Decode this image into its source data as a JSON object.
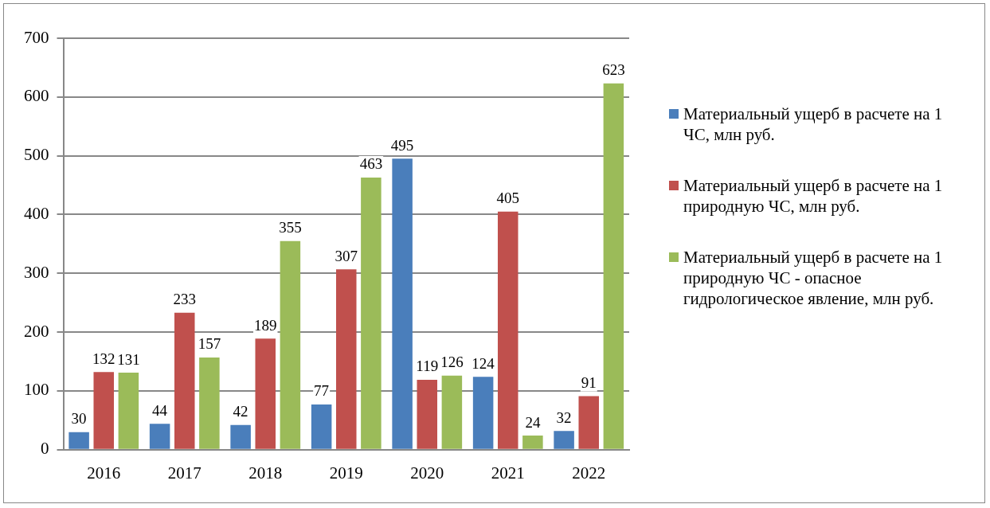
{
  "chart_data": {
    "type": "bar",
    "categories": [
      "2016",
      "2017",
      "2018",
      "2019",
      "2020",
      "2021",
      "2022"
    ],
    "series": [
      {
        "name": "Материальный ущерб в расчете на 1 ЧС, млн руб.",
        "color": "#4a7ebb",
        "values": [
          30,
          44,
          42,
          77,
          495,
          124,
          32
        ]
      },
      {
        "name": "Материальный ущерб в расчете на 1 природную ЧС, млн руб.",
        "color": "#c0504d",
        "values": [
          132,
          233,
          189,
          307,
          119,
          405,
          91
        ]
      },
      {
        "name": "Материальный ущерб в расчете на 1 природную ЧС - опасное гидрологическое явление, млн руб.",
        "color": "#9bbb59",
        "values": [
          131,
          157,
          355,
          463,
          126,
          24,
          623
        ]
      }
    ],
    "ylim": [
      0,
      700
    ],
    "yticks": [
      0,
      100,
      200,
      300,
      400,
      500,
      600,
      700
    ],
    "grid": "y",
    "legend": "right",
    "data_labels": true
  }
}
